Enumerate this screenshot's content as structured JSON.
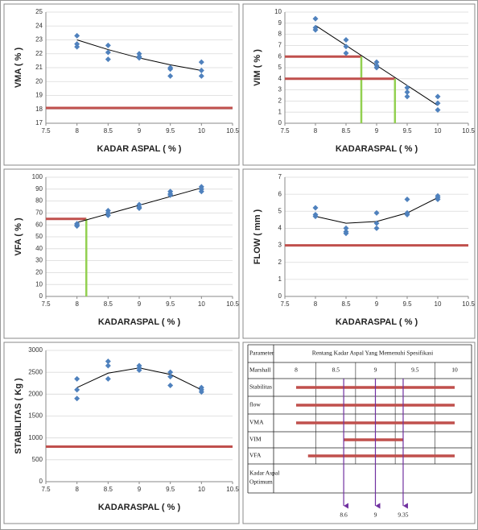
{
  "chart_data": [
    {
      "type": "scatter",
      "x_label": "KADAR ASPAL ( % )",
      "y_label": "VMA ( % )",
      "color": "#4f81bd",
      "x": [
        8,
        8,
        8,
        8.5,
        8.5,
        8.5,
        9,
        9,
        9,
        9.5,
        9.5,
        9.5,
        10,
        10,
        10
      ],
      "values": [
        23.3,
        22.7,
        22.5,
        22.6,
        22.1,
        21.6,
        22.0,
        21.8,
        21.7,
        21.0,
        20.9,
        20.4,
        21.4,
        20.8,
        20.4
      ],
      "trendline": {
        "x": [
          8,
          8.5,
          9,
          9.5,
          10
        ],
        "values": [
          23.0,
          22.3,
          21.7,
          21.2,
          20.8
        ],
        "color": "#000000"
      },
      "reference_lines": [
        {
          "y": 18.1
        }
      ],
      "reference_color": "#c0504d",
      "guide_color": "#92d050",
      "xlim": [
        7.5,
        10.5
      ],
      "xticks": [
        7.5,
        8,
        8.5,
        9,
        9.5,
        10,
        10.5
      ],
      "ylim": [
        17,
        25
      ],
      "yticks": [
        17,
        18,
        19,
        20,
        21,
        22,
        23,
        24,
        25
      ],
      "grid": true
    },
    {
      "type": "scatter",
      "x_label": "KADARASPAL ( % )",
      "y_label": "VIM ( % )",
      "color": "#4f81bd",
      "x": [
        8,
        8,
        8,
        8.5,
        8.5,
        8.5,
        9,
        9,
        9,
        9.5,
        9.5,
        9.5,
        10,
        10,
        10
      ],
      "values": [
        9.4,
        8.6,
        8.4,
        7.5,
        6.9,
        6.3,
        5.5,
        5.2,
        5.0,
        3.2,
        2.8,
        2.4,
        2.4,
        1.8,
        1.2
      ],
      "trendline": {
        "x": [
          8,
          10
        ],
        "values": [
          8.8,
          1.6
        ],
        "color": "#000000"
      },
      "reference_lines": [
        {
          "y": 6,
          "x": 8.75
        },
        {
          "y": 4,
          "x": 9.3
        }
      ],
      "reference_color": "#c0504d",
      "guide_color": "#92d050",
      "xlim": [
        7.5,
        10.5
      ],
      "xticks": [
        7.5,
        8,
        8.5,
        9,
        9.5,
        10,
        10.5
      ],
      "ylim": [
        0,
        10
      ],
      "yticks": [
        0,
        1,
        2,
        3,
        4,
        5,
        6,
        7,
        8,
        9,
        10
      ],
      "grid": true
    },
    {
      "type": "scatter",
      "x_label": "KADARASPAL ( % )",
      "y_label": "VFA ( % )",
      "color": "#4f81bd",
      "x": [
        8,
        8,
        8,
        8.5,
        8.5,
        8.5,
        9,
        9,
        9,
        9.5,
        9.5,
        9.5,
        10,
        10,
        10
      ],
      "values": [
        61,
        60,
        59,
        72,
        70,
        68,
        77,
        75,
        74,
        88,
        86,
        85,
        92,
        90,
        88
      ],
      "trendline": {
        "x": [
          8,
          10
        ],
        "values": [
          62,
          91
        ],
        "color": "#000000"
      },
      "reference_lines": [
        {
          "y": 65,
          "x": 8.15
        }
      ],
      "reference_color": "#c0504d",
      "guide_color": "#92d050",
      "xlim": [
        7.5,
        10.5
      ],
      "xticks": [
        7.5,
        8,
        8.5,
        9,
        9.5,
        10,
        10.5
      ],
      "ylim": [
        0,
        100
      ],
      "yticks": [
        0,
        10,
        20,
        30,
        40,
        50,
        60,
        70,
        80,
        90,
        100
      ],
      "grid": true
    },
    {
      "type": "scatter",
      "x_label": "KADARASPAL ( % )",
      "y_label": "FLOW ( mm )",
      "color": "#4f81bd",
      "x": [
        8,
        8,
        8,
        8.5,
        8.5,
        8.5,
        9,
        9,
        9,
        9.5,
        9.5,
        9.5,
        10,
        10,
        10
      ],
      "values": [
        5.2,
        4.8,
        4.7,
        4.0,
        3.8,
        3.7,
        4.9,
        4.3,
        4.0,
        5.7,
        4.9,
        4.8,
        5.9,
        5.8,
        5.7
      ],
      "trendline": {
        "x": [
          8,
          8.5,
          9,
          9.5,
          10
        ],
        "values": [
          4.7,
          4.3,
          4.4,
          4.9,
          5.8
        ],
        "color": "#000000"
      },
      "reference_lines": [
        {
          "y": 3
        }
      ],
      "reference_color": "#c0504d",
      "guide_color": "#92d050",
      "xlim": [
        7.5,
        10.5
      ],
      "xticks": [
        7.5,
        8,
        8.5,
        9,
        9.5,
        10,
        10.5
      ],
      "ylim": [
        0,
        7
      ],
      "yticks": [
        0,
        1,
        2,
        3,
        4,
        5,
        6,
        7
      ],
      "grid": true
    },
    {
      "type": "scatter",
      "x_label": "KADARASPAL ( % )",
      "y_label": "STABILITAS ( Kg )",
      "color": "#4f81bd",
      "x": [
        8,
        8,
        8,
        8.5,
        8.5,
        8.5,
        9,
        9,
        9,
        9.5,
        9.5,
        9.5,
        10,
        10,
        10
      ],
      "values": [
        2350,
        2100,
        1900,
        2750,
        2650,
        2350,
        2650,
        2600,
        2550,
        2500,
        2400,
        2200,
        2150,
        2100,
        2050
      ],
      "trendline": {
        "x": [
          8,
          8.5,
          9,
          9.5,
          10
        ],
        "values": [
          2150,
          2480,
          2600,
          2450,
          2100
        ],
        "color": "#000000"
      },
      "reference_lines": [
        {
          "y": 800
        }
      ],
      "reference_color": "#c0504d",
      "guide_color": "#92d050",
      "xlim": [
        7.5,
        10.5
      ],
      "xticks": [
        7.5,
        8,
        8.5,
        9,
        9.5,
        10,
        10.5
      ],
      "ylim": [
        0,
        3000
      ],
      "yticks": [
        0,
        500,
        1000,
        1500,
        2000,
        2500,
        3000
      ],
      "grid": true
    }
  ],
  "table": {
    "header": [
      "Parameter",
      "Rentang Kadar Aspal Yang Memenuhi Spesifikasi"
    ],
    "axis_label": "Marshall",
    "ticks": [
      8,
      8.5,
      9,
      9.5,
      10
    ],
    "bar_color": "#c0504d",
    "rows": [
      {
        "label": "Stabilitas",
        "range": [
          8,
          10
        ]
      },
      {
        "label": "flow",
        "range": [
          8,
          10
        ]
      },
      {
        "label": "VMA",
        "range": [
          8,
          10
        ]
      },
      {
        "label": "VIM",
        "range": [
          8.6,
          9.35
        ]
      },
      {
        "label": "VFA",
        "range": [
          8.15,
          10
        ]
      }
    ],
    "optimum": {
      "label": [
        "Kadar Aspal",
        "Optimum"
      ],
      "values": [
        8.6,
        9,
        9.35
      ],
      "color": "#7030a0"
    }
  }
}
